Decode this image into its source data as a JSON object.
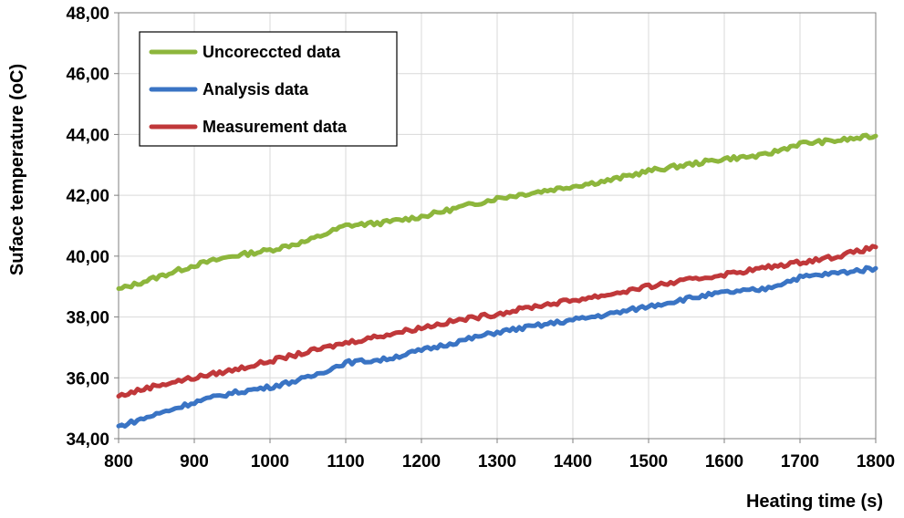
{
  "chart_data": {
    "type": "line",
    "xlabel": "Heating time (s)",
    "ylabel": "Suface temperature (oC)",
    "xlim": [
      800,
      1800
    ],
    "ylim": [
      34,
      48
    ],
    "xticks": [
      "800",
      "900",
      "1000",
      "1100",
      "1200",
      "1300",
      "1400",
      "1500",
      "1600",
      "1700",
      "1800"
    ],
    "yticks": [
      "34,00",
      "36,00",
      "38,00",
      "40,00",
      "42,00",
      "44,00",
      "46,00",
      "48,00"
    ],
    "grid": true,
    "legend": "top-left",
    "series": [
      {
        "name": "Uncoreccted data",
        "color": "#8db63c",
        "x": [
          800,
          850,
          900,
          950,
          1000,
          1050,
          1100,
          1150,
          1200,
          1250,
          1300,
          1350,
          1400,
          1450,
          1500,
          1550,
          1600,
          1650,
          1700,
          1750,
          1800
        ],
        "y": [
          38.9,
          39.3,
          39.7,
          40.0,
          40.2,
          40.5,
          41.0,
          41.1,
          41.3,
          41.6,
          41.9,
          42.1,
          42.3,
          42.5,
          42.8,
          43.0,
          43.2,
          43.3,
          43.7,
          43.8,
          43.95
        ]
      },
      {
        "name": "Analysis data",
        "color": "#3a74c4",
        "x": [
          800,
          850,
          900,
          950,
          1000,
          1050,
          1100,
          1150,
          1200,
          1250,
          1300,
          1350,
          1400,
          1450,
          1500,
          1550,
          1600,
          1650,
          1700,
          1750,
          1800
        ],
        "y": [
          34.4,
          34.8,
          35.2,
          35.5,
          35.7,
          36.0,
          36.5,
          36.6,
          36.9,
          37.2,
          37.5,
          37.7,
          37.9,
          38.1,
          38.35,
          38.6,
          38.8,
          38.9,
          39.3,
          39.45,
          39.6
        ]
      },
      {
        "name": "Measurement data",
        "color": "#c0383a",
        "x": [
          800,
          850,
          900,
          950,
          1000,
          1050,
          1100,
          1150,
          1200,
          1250,
          1300,
          1350,
          1400,
          1450,
          1500,
          1550,
          1600,
          1650,
          1700,
          1750,
          1800
        ],
        "y": [
          35.4,
          35.75,
          36.0,
          36.25,
          36.55,
          36.85,
          37.15,
          37.4,
          37.65,
          37.9,
          38.1,
          38.35,
          38.55,
          38.75,
          39.0,
          39.2,
          39.4,
          39.6,
          39.8,
          40.0,
          40.3
        ]
      }
    ]
  }
}
